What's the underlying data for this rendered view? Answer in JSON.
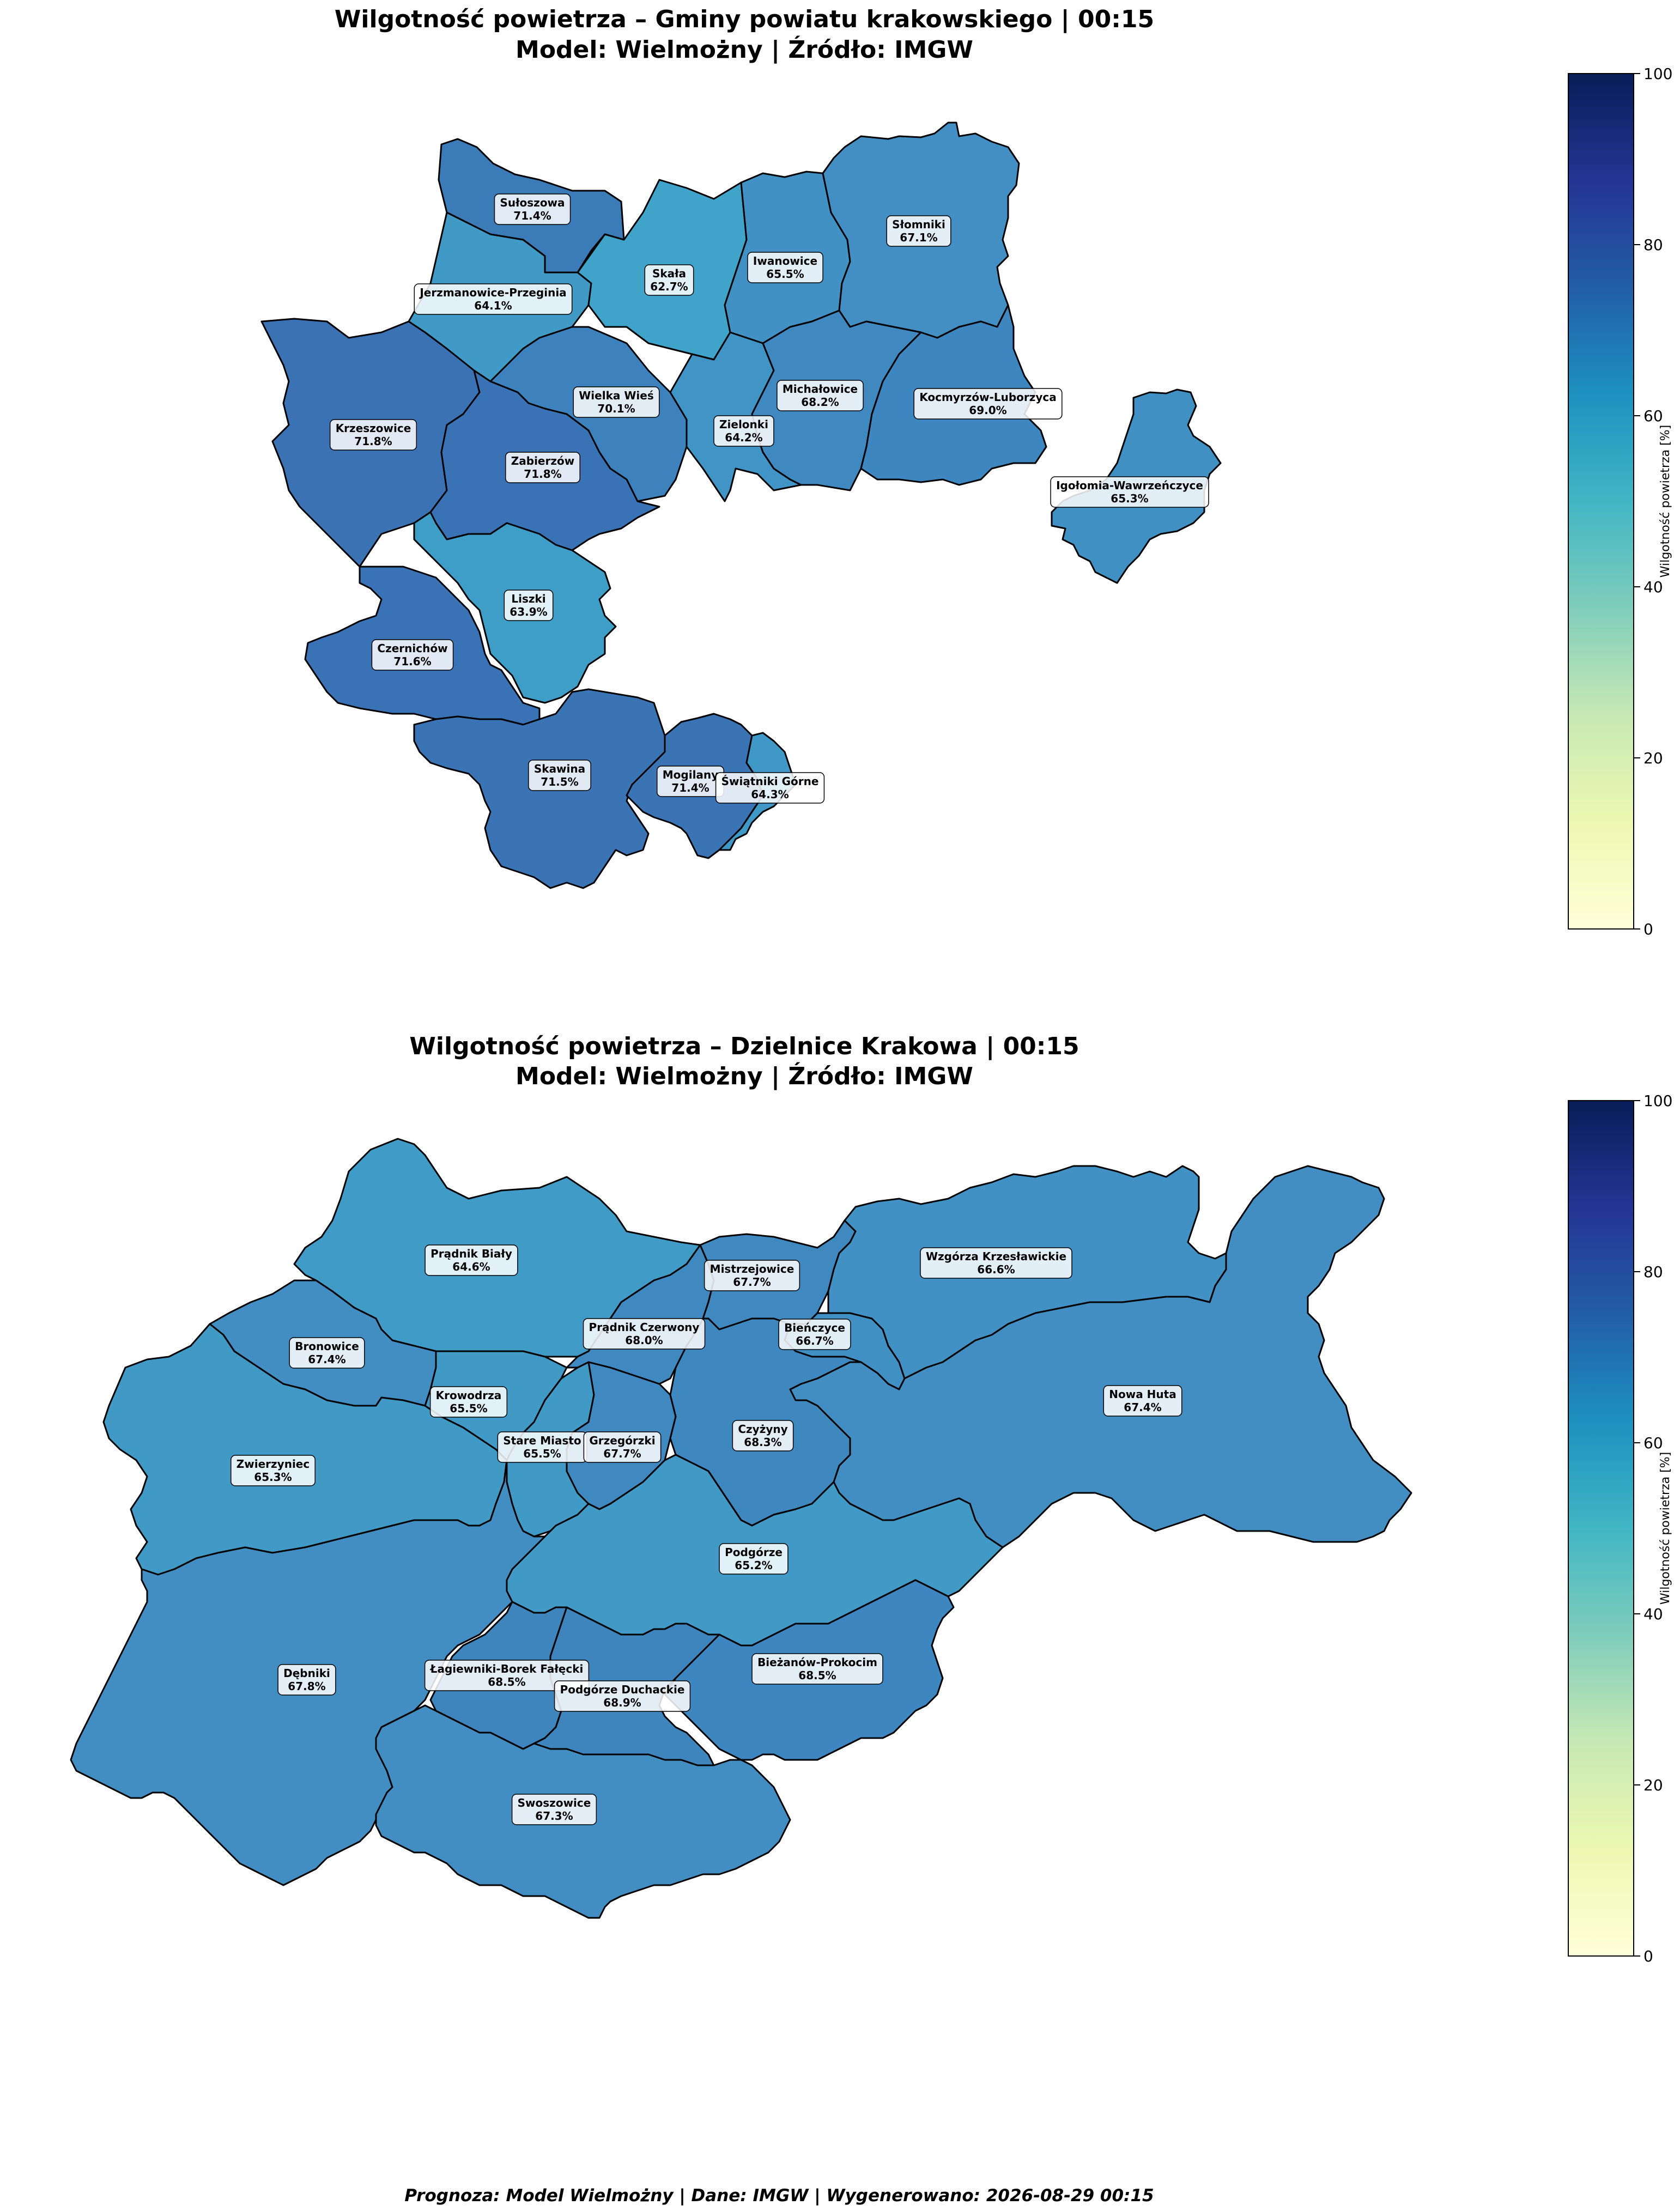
{
  "panels": [
    {
      "title_line1": "Wilgotność powietrza – Gminy powiatu krakowskiego | 00:15",
      "title_line2": "Model: Wielmożny | Źródło: IMGW",
      "regions": [
        {
          "name": "Sułoszowa",
          "value": "71.4%"
        },
        {
          "name": "Jerzmanowice-Przeginia",
          "value": "64.1%"
        },
        {
          "name": "Skała",
          "value": "62.7%"
        },
        {
          "name": "Iwanowice",
          "value": "65.5%"
        },
        {
          "name": "Słomniki",
          "value": "67.1%"
        },
        {
          "name": "Krzeszowice",
          "value": "71.8%"
        },
        {
          "name": "Wielka Wieś",
          "value": "70.1%"
        },
        {
          "name": "Michałowice",
          "value": "68.2%"
        },
        {
          "name": "Kocmyrzów-Luborzyca",
          "value": "69.0%"
        },
        {
          "name": "Zielonki",
          "value": "64.2%"
        },
        {
          "name": "Zabierzów",
          "value": "71.8%"
        },
        {
          "name": "Igołomia-Wawrzeńczyce",
          "value": "65.3%"
        },
        {
          "name": "Liszki",
          "value": "63.9%"
        },
        {
          "name": "Czernichów",
          "value": "71.6%"
        },
        {
          "name": "Skawina",
          "value": "71.5%"
        },
        {
          "name": "Mogilany",
          "value": "71.4%"
        },
        {
          "name": "Świątniki Górne",
          "value": "64.3%"
        }
      ],
      "colorbar": {
        "label": "Wilgotność powietrza [%]",
        "ticks": [
          "0",
          "20",
          "40",
          "60",
          "80",
          "100"
        ]
      }
    },
    {
      "title_line1": "Wilgotność powietrza – Dzielnice Krakowa | 00:15",
      "title_line2": "Model: Wielmożny | Źródło: IMGW",
      "regions": [
        {
          "name": "Prądnik Biały",
          "value": "64.6%"
        },
        {
          "name": "Mistrzejowice",
          "value": "67.7%"
        },
        {
          "name": "Wzgórza Krzesławickie",
          "value": "66.6%"
        },
        {
          "name": "Bronowice",
          "value": "67.4%"
        },
        {
          "name": "Prądnik Czerwony",
          "value": "68.0%"
        },
        {
          "name": "Bieńczyce",
          "value": "66.7%"
        },
        {
          "name": "Krowodrza",
          "value": "65.5%"
        },
        {
          "name": "Nowa Huta",
          "value": "67.4%"
        },
        {
          "name": "Czyżyny",
          "value": "68.3%"
        },
        {
          "name": "Stare Miasto",
          "value": "65.5%"
        },
        {
          "name": "Grzegórzki",
          "value": "67.7%"
        },
        {
          "name": "Zwierzyniec",
          "value": "65.3%"
        },
        {
          "name": "Podgórze",
          "value": "65.2%"
        },
        {
          "name": "Dębniki",
          "value": "67.8%"
        },
        {
          "name": "Łagiewniki-Borek Fałęcki",
          "value": "68.5%"
        },
        {
          "name": "Bieżanów-Prokocim",
          "value": "68.5%"
        },
        {
          "name": "Podgórze Duchackie",
          "value": "68.9%"
        },
        {
          "name": "Swoszowice",
          "value": "67.3%"
        }
      ],
      "colorbar": {
        "label": "Wilgotność powietrza [%]",
        "ticks": [
          "0",
          "20",
          "40",
          "60",
          "80",
          "100"
        ]
      }
    }
  ],
  "colors": {
    "scale_0": "#ffffd9",
    "scale_20": "#edf8b1",
    "scale_40": "#7fcdbb",
    "scale_60": "#1d91c0",
    "scale_80": "#225ea8",
    "scale_100": "#081d58"
  },
  "footer": "Prognoza: Model Wielmożny | Dane: IMGW | Wygenerowano: 2026-08-29 00:15"
}
